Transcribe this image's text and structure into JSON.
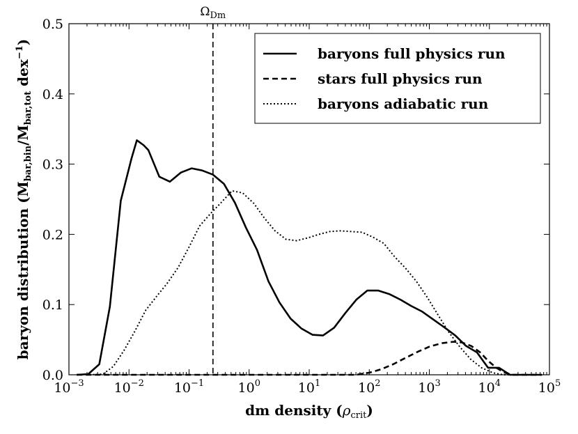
{
  "chart_data": {
    "type": "line",
    "title": "",
    "xlabel": "dm density (ρcrit)",
    "xlabel_main": "dm density (",
    "xlabel_symbol": "ρ",
    "xlabel_sub": "crit",
    "xlabel_close": ")",
    "ylabel": "baryon distribution (Mbar,bin/Mbar,tot dex−1)",
    "ylabel_parts": {
      "p1": "baryon distribution (M",
      "s1": "bar,bin",
      "p2": "/M",
      "s2": "bar,tot",
      "p3": " dex",
      "sup": "−1",
      "p4": ")"
    },
    "xscale": "log",
    "xlim": [
      0.001,
      100000
    ],
    "ylim": [
      0,
      0.5
    ],
    "xticks": [
      {
        "value": 0.001,
        "base": "10",
        "exp": "−3"
      },
      {
        "value": 0.01,
        "base": "10",
        "exp": "−2"
      },
      {
        "value": 0.1,
        "base": "10",
        "exp": "−1"
      },
      {
        "value": 1,
        "base": "10",
        "exp": "0"
      },
      {
        "value": 10,
        "base": "10",
        "exp": "1"
      },
      {
        "value": 100,
        "base": "10",
        "exp": "2"
      },
      {
        "value": 1000,
        "base": "10",
        "exp": "3"
      },
      {
        "value": 10000,
        "base": "10",
        "exp": "4"
      },
      {
        "value": 100000,
        "base": "10",
        "exp": "5"
      }
    ],
    "yticks": [
      {
        "value": 0.0,
        "label": "0.0"
      },
      {
        "value": 0.1,
        "label": "0.1"
      },
      {
        "value": 0.2,
        "label": "0.2"
      },
      {
        "value": 0.3,
        "label": "0.3"
      },
      {
        "value": 0.4,
        "label": "0.4"
      },
      {
        "value": 0.5,
        "label": "0.5"
      }
    ],
    "vline": {
      "x": 0.25,
      "label_main": "Ω",
      "label_sub": "Dm",
      "style": "dashed"
    },
    "legend_position": "top-right",
    "series": [
      {
        "name": "baryons full physics run",
        "style": "solid",
        "points": [
          [
            0.00135,
            0.0
          ],
          [
            0.0021,
            0.001
          ],
          [
            0.0032,
            0.015
          ],
          [
            0.0048,
            0.097
          ],
          [
            0.0073,
            0.248
          ],
          [
            0.011,
            0.308
          ],
          [
            0.0135,
            0.334
          ],
          [
            0.0175,
            0.327
          ],
          [
            0.021,
            0.32
          ],
          [
            0.032,
            0.282
          ],
          [
            0.048,
            0.275
          ],
          [
            0.073,
            0.288
          ],
          [
            0.11,
            0.294
          ],
          [
            0.165,
            0.291
          ],
          [
            0.25,
            0.285
          ],
          [
            0.38,
            0.272
          ],
          [
            0.58,
            0.245
          ],
          [
            0.88,
            0.21
          ],
          [
            1.35,
            0.178
          ],
          [
            2.1,
            0.133
          ],
          [
            3.2,
            0.103
          ],
          [
            4.9,
            0.08
          ],
          [
            7.4,
            0.066
          ],
          [
            11.3,
            0.057
          ],
          [
            17,
            0.056
          ],
          [
            26,
            0.067
          ],
          [
            40,
            0.088
          ],
          [
            61,
            0.107
          ],
          [
            93,
            0.12
          ],
          [
            140,
            0.12
          ],
          [
            215,
            0.115
          ],
          [
            330,
            0.107
          ],
          [
            500,
            0.098
          ],
          [
            760,
            0.09
          ],
          [
            1150,
            0.079
          ],
          [
            1750,
            0.068
          ],
          [
            2700,
            0.056
          ],
          [
            4100,
            0.041
          ],
          [
            6200,
            0.032
          ],
          [
            9500,
            0.01
          ],
          [
            14500,
            0.01
          ],
          [
            22000,
            0.0
          ],
          [
            33000,
            0.0
          ],
          [
            50000,
            0.0
          ],
          [
            75000,
            0.0
          ]
        ]
      },
      {
        "name": "stars full physics run",
        "style": "dashed",
        "points": [
          [
            0.00135,
            0.0
          ],
          [
            0.01,
            0.0
          ],
          [
            0.1,
            0.0
          ],
          [
            1,
            0.0
          ],
          [
            10,
            0.0
          ],
          [
            60,
            0.0
          ],
          [
            100,
            0.003
          ],
          [
            160,
            0.008
          ],
          [
            250,
            0.015
          ],
          [
            400,
            0.024
          ],
          [
            650,
            0.033
          ],
          [
            1000,
            0.04
          ],
          [
            1600,
            0.045
          ],
          [
            2500,
            0.047
          ],
          [
            3500,
            0.046
          ],
          [
            5000,
            0.041
          ],
          [
            7000,
            0.032
          ],
          [
            9500,
            0.02
          ],
          [
            13000,
            0.01
          ],
          [
            18000,
            0.003
          ],
          [
            25000,
            0.0
          ],
          [
            40000,
            0.0
          ],
          [
            75000,
            0.0
          ]
        ]
      },
      {
        "name": "baryons adiabatic run",
        "style": "dotted",
        "points": [
          [
            0.0022,
            0.0
          ],
          [
            0.0037,
            0.001
          ],
          [
            0.0055,
            0.012
          ],
          [
            0.0083,
            0.035
          ],
          [
            0.0125,
            0.062
          ],
          [
            0.019,
            0.092
          ],
          [
            0.029,
            0.112
          ],
          [
            0.043,
            0.13
          ],
          [
            0.066,
            0.153
          ],
          [
            0.1,
            0.182
          ],
          [
            0.15,
            0.212
          ],
          [
            0.23,
            0.23
          ],
          [
            0.34,
            0.245
          ],
          [
            0.52,
            0.262
          ],
          [
            0.78,
            0.259
          ],
          [
            1.2,
            0.244
          ],
          [
            1.8,
            0.223
          ],
          [
            2.7,
            0.205
          ],
          [
            4.1,
            0.193
          ],
          [
            6.2,
            0.191
          ],
          [
            9.5,
            0.195
          ],
          [
            14.5,
            0.2
          ],
          [
            22,
            0.204
          ],
          [
            33,
            0.205
          ],
          [
            50,
            0.204
          ],
          [
            76,
            0.203
          ],
          [
            115,
            0.196
          ],
          [
            175,
            0.187
          ],
          [
            265,
            0.168
          ],
          [
            400,
            0.152
          ],
          [
            610,
            0.133
          ],
          [
            930,
            0.11
          ],
          [
            1400,
            0.085
          ],
          [
            2100,
            0.061
          ],
          [
            3200,
            0.04
          ],
          [
            4900,
            0.022
          ],
          [
            7400,
            0.01
          ],
          [
            11300,
            0.003
          ],
          [
            17000,
            0.0
          ],
          [
            26000,
            0.0
          ],
          [
            40000,
            0.0
          ]
        ]
      }
    ]
  }
}
